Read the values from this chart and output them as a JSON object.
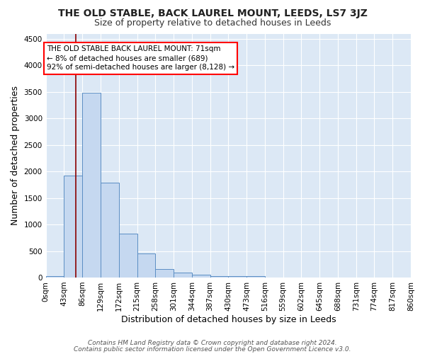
{
  "title": "THE OLD STABLE, BACK LAUREL MOUNT, LEEDS, LS7 3JZ",
  "subtitle": "Size of property relative to detached houses in Leeds",
  "xlabel": "Distribution of detached houses by size in Leeds",
  "ylabel": "Number of detached properties",
  "bin_labels": [
    "0sqm",
    "43sqm",
    "86sqm",
    "129sqm",
    "172sqm",
    "215sqm",
    "258sqm",
    "301sqm",
    "344sqm",
    "387sqm",
    "430sqm",
    "473sqm",
    "516sqm",
    "559sqm",
    "602sqm",
    "645sqm",
    "688sqm",
    "731sqm",
    "774sqm",
    "817sqm",
    "860sqm"
  ],
  "bar_values": [
    30,
    1920,
    3480,
    1790,
    830,
    450,
    155,
    90,
    50,
    30,
    20,
    20,
    0,
    0,
    0,
    0,
    0,
    0,
    0,
    0
  ],
  "bar_color": "#c5d8f0",
  "bar_edge_color": "#5b8ec4",
  "property_size": 71,
  "bin_width": 43,
  "vline_color": "#8b0000",
  "ylim": [
    0,
    4600
  ],
  "yticks": [
    0,
    500,
    1000,
    1500,
    2000,
    2500,
    3000,
    3500,
    4000,
    4500
  ],
  "annotation_text": "THE OLD STABLE BACK LAUREL MOUNT: 71sqm\n← 8% of detached houses are smaller (689)\n92% of semi-detached houses are larger (8,128) →",
  "footer_line1": "Contains HM Land Registry data © Crown copyright and database right 2024.",
  "footer_line2": "Contains public sector information licensed under the Open Government Licence v3.0.",
  "background_color": "#dce8f5",
  "grid_color": "#ffffff",
  "fig_background": "#ffffff",
  "title_fontsize": 10,
  "subtitle_fontsize": 9,
  "axis_label_fontsize": 9,
  "tick_fontsize": 7.5,
  "annotation_fontsize": 7.5,
  "footer_fontsize": 6.5
}
